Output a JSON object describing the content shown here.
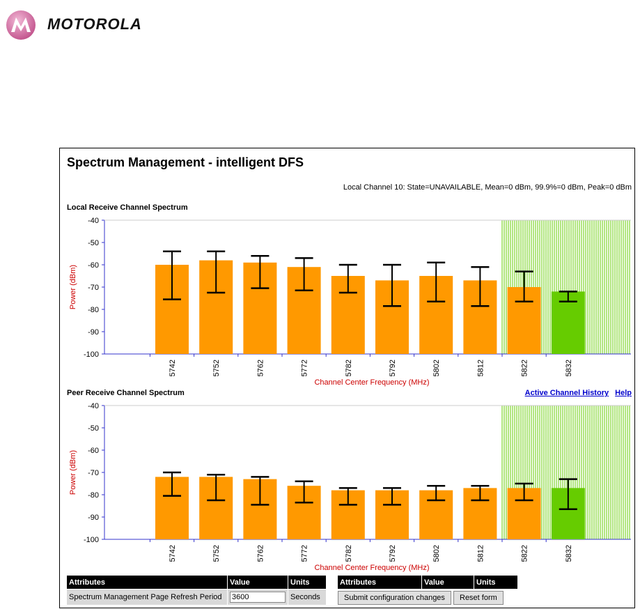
{
  "brand": {
    "name": "MOTOROLA"
  },
  "page": {
    "title": "Spectrum Management - intelligent DFS",
    "status": "Local Channel 10: State=UNAVAILABLE, Mean=0 dBm, 99.9%=0 dBm, Peak=0 dBm",
    "local_section_title": "Local Receive Channel Spectrum",
    "peer_section_title": "Peer Receive Channel Spectrum",
    "links": {
      "history": "Active Channel History",
      "help": "Help"
    }
  },
  "colors": {
    "bar": "#ff9900",
    "active_bar": "#66cc00",
    "hatch": "#66cc00",
    "axis": "#3333cc",
    "label": "#cc0000"
  },
  "chart_data": [
    {
      "type": "bar",
      "title": "Local Receive Channel Spectrum",
      "xlabel": "Channel Center Frequency (MHz)",
      "ylabel": "Power (dBm)",
      "ylim": [
        -100,
        -40
      ],
      "yticks": [
        "-40",
        "-50",
        "-60",
        "-70",
        "-80",
        "-90",
        "-100"
      ],
      "categories": [
        "5742",
        "5752",
        "5762",
        "5772",
        "5782",
        "5792",
        "5802",
        "5812",
        "5822",
        "5832"
      ],
      "mean": [
        -60,
        -58,
        -59,
        -61,
        -65,
        -67,
        -65,
        -67,
        -70,
        -72
      ],
      "err_high": [
        -54,
        -54,
        -56,
        -57,
        -60,
        -60,
        -59,
        -61,
        -63,
        -72
      ],
      "err_low": [
        -75.5,
        -72.5,
        -70.5,
        -71.5,
        -72.5,
        -78.5,
        -76.5,
        -78.5,
        -76.5,
        -76.5
      ],
      "active_channel": "5832",
      "barred_from": "5822"
    },
    {
      "type": "bar",
      "title": "Peer Receive Channel Spectrum",
      "xlabel": "Channel Center Frequency (MHz)",
      "ylabel": "Power (dBm)",
      "ylim": [
        -100,
        -40
      ],
      "yticks": [
        "-40",
        "-50",
        "-60",
        "-70",
        "-80",
        "-90",
        "-100"
      ],
      "categories": [
        "5742",
        "5752",
        "5762",
        "5772",
        "5782",
        "5792",
        "5802",
        "5812",
        "5822",
        "5832"
      ],
      "mean": [
        -72,
        -72,
        -73,
        -76,
        -78,
        -78,
        -78,
        -77,
        -77,
        -77
      ],
      "err_high": [
        -70,
        -71,
        -72,
        -74,
        -77,
        -77,
        -76,
        -76,
        -75,
        -73
      ],
      "err_low": [
        -80.5,
        -82.5,
        -84.5,
        -83.5,
        -84.5,
        -84.5,
        -82.5,
        -82.5,
        -82.5,
        -86.5
      ],
      "active_channel": "5832",
      "barred_from": "5822"
    }
  ],
  "table_left": {
    "headers": [
      "Attributes",
      "Value",
      "Units"
    ],
    "row_label": "Spectrum Management Page Refresh Period",
    "value": "3600",
    "units": "Seconds"
  },
  "table_right": {
    "headers": [
      "Attributes",
      "Value",
      "Units"
    ],
    "submit_label": "Submit configuration changes",
    "reset_label": "Reset form"
  }
}
